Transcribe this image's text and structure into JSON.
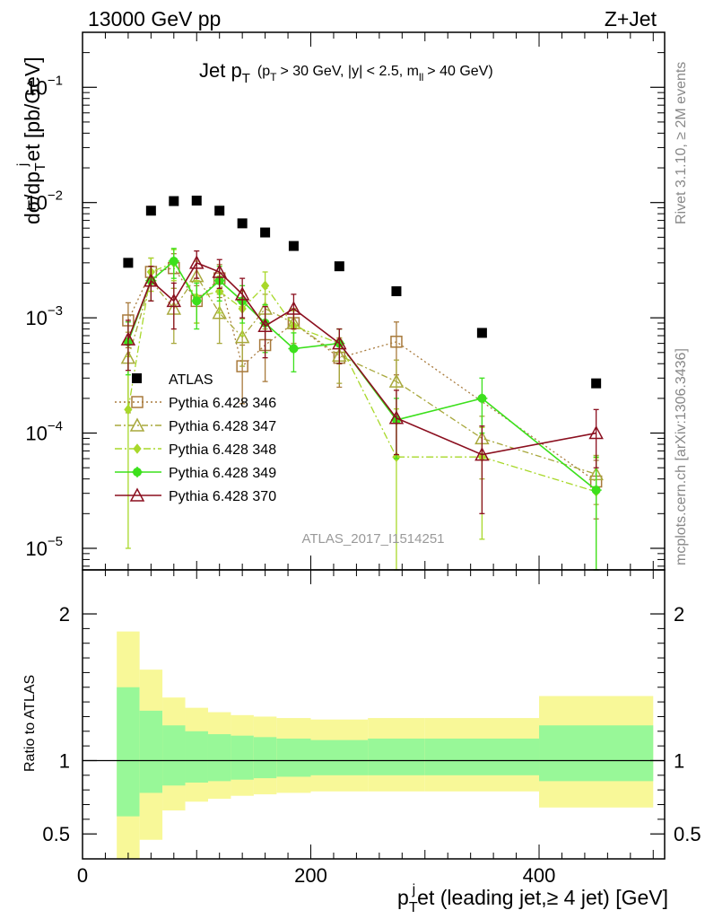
{
  "header": {
    "energy_label": "13000 GeV pp",
    "process_label": "Z+Jet"
  },
  "side": {
    "right_top": "Rivet 3.1.10, ≥ 2M events",
    "right_bottom": "mcplots.cern.ch [arXiv:1306.3436]"
  },
  "colors": {
    "data": "#000000",
    "s346": "#a87a3c",
    "s347": "#a8a83c",
    "s348": "#a8d82a",
    "s349": "#3ce01c",
    "s370": "#8b0f1f",
    "band_inner": "#98f898",
    "band_outer": "#f8f898"
  },
  "chart_data": [
    {
      "type": "scatter",
      "title": "Jet p_T (p_T > 30 GeV, |y| < 2.5, m_ll > 40 GeV)",
      "title_main": "Jet p",
      "title_sub": "T",
      "title_cut_open": "(p",
      "title_cut_sub": "T",
      "title_cut_rest": "> 30 GeV, |y| < 2.5, m",
      "title_cut_sub2": "ll",
      "title_cut_end": "> 40 GeV)",
      "ylabel": "dσ/dp_T^j et [pb/GeV]",
      "ylabel_a": "dσ/dp",
      "ylabel_b": "T",
      "ylabel_c": "j",
      "ylabel_d": "et [pb/GeV]",
      "yscale": "log",
      "ylim": [
        6.5e-06,
        0.3
      ],
      "xlim": [
        0,
        510
      ],
      "watermark": "ATLAS_2017_I1514251",
      "yticks": [
        {
          "v": 1e-05,
          "base": "10",
          "exp": "−5"
        },
        {
          "v": 0.0001,
          "base": "10",
          "exp": "−4"
        },
        {
          "v": 0.001,
          "base": "10",
          "exp": "−3"
        },
        {
          "v": 0.01,
          "base": "10",
          "exp": "−2"
        },
        {
          "v": 0.1,
          "base": "10",
          "exp": "−1"
        }
      ],
      "data": {
        "name": "ATLAS",
        "x": [
          40,
          60,
          80,
          100,
          120,
          140,
          160,
          185,
          225,
          275,
          350,
          450
        ],
        "values": [
          0.003,
          0.0085,
          0.0103,
          0.0104,
          0.0085,
          0.0066,
          0.0055,
          0.0042,
          0.0028,
          0.0017,
          0.00074,
          0.00027
        ]
      },
      "series": [
        {
          "id": "s346",
          "name": "Pythia 6.428 346",
          "marker": "square",
          "dash": "2,3",
          "x": [
            40,
            60,
            80,
            100,
            120,
            140,
            160,
            185,
            225,
            275,
            350,
            450
          ],
          "values": [
            0.00095,
            0.0025,
            0.0027,
            0.0014,
            0.0022,
            0.00038,
            0.00058,
            0.0009,
            0.00045,
            0.00062,
            null,
            3.8e-05
          ],
          "err_lo": [
            0.0004,
            0.0008,
            0.0009,
            0.0005,
            0.0007,
            0.0002,
            0.0003,
            0.0003,
            0.0002,
            0.0003,
            null,
            2e-05
          ],
          "err_hi": [
            0.0004,
            0.0008,
            0.0009,
            0.0005,
            0.0007,
            0.0002,
            0.0003,
            0.0003,
            0.0002,
            0.0003,
            null,
            2e-05
          ]
        },
        {
          "id": "s347",
          "name": "Pythia 6.428 347",
          "marker": "triangle",
          "dash": "7,3,2,3",
          "x": [
            40,
            60,
            80,
            100,
            120,
            140,
            160,
            185,
            225,
            275,
            350,
            450
          ],
          "values": [
            0.00045,
            0.0021,
            0.0012,
            0.0023,
            0.0011,
            0.00068,
            0.0012,
            0.0009,
            0.00047,
            0.00028,
            9e-05,
            4.4e-05
          ],
          "err_lo": [
            0.0003,
            0.0007,
            0.0006,
            0.0008,
            0.0005,
            0.0003,
            0.0004,
            0.0003,
            0.0002,
            0.00015,
            5e-05,
            2e-05
          ],
          "err_hi": [
            0.0003,
            0.0007,
            0.0006,
            0.0008,
            0.0005,
            0.0003,
            0.0004,
            0.0003,
            0.0002,
            0.00015,
            5e-05,
            2e-05
          ]
        },
        {
          "id": "s348",
          "name": "Pythia 6.428 348",
          "marker": "diamond",
          "dash": "8,3,2,3",
          "x": [
            40,
            60,
            80,
            100,
            120,
            140,
            160,
            185,
            225,
            275,
            350,
            450
          ],
          "values": [
            0.00016,
            0.0025,
            0.003,
            0.0015,
            0.0017,
            0.0012,
            0.0019,
            0.00085,
            0.0006,
            6.2e-05,
            6.2e-05,
            3.1e-05
          ],
          "err_lo": [
            0.00015,
            0.0008,
            0.0009,
            0.0006,
            0.0006,
            0.0005,
            0.0006,
            0.0003,
            0.0002,
            6e-05,
            5e-05,
            3e-05
          ],
          "err_hi": [
            0.0003,
            0.0008,
            0.0009,
            0.0006,
            0.0006,
            0.0005,
            0.0006,
            0.0003,
            0.0002,
            0.0001,
            5e-05,
            3e-05
          ]
        },
        {
          "id": "s349",
          "name": "Pythia 6.428 349",
          "marker": "plus-circle",
          "dash": "",
          "x": [
            40,
            60,
            80,
            100,
            120,
            140,
            160,
            185,
            225,
            275,
            350,
            450
          ],
          "values": [
            0.00062,
            0.0021,
            0.0031,
            0.0014,
            0.0021,
            0.0014,
            0.0009,
            0.00054,
            0.0006,
            0.00013,
            0.0002,
            3.2e-05
          ],
          "err_lo": [
            0.0003,
            0.0007,
            0.0009,
            0.0006,
            0.0007,
            0.0005,
            0.0004,
            0.0002,
            0.0002,
            7e-05,
            0.0001,
            3e-05
          ],
          "err_hi": [
            0.0003,
            0.0007,
            0.0009,
            0.0006,
            0.0007,
            0.0005,
            0.0004,
            0.0002,
            0.0002,
            7e-05,
            0.0001,
            3e-05
          ]
        },
        {
          "id": "s370",
          "name": "Pythia 6.428 370",
          "marker": "triangle",
          "dash": "",
          "x": [
            40,
            60,
            80,
            100,
            120,
            140,
            160,
            185,
            225,
            275,
            350,
            450
          ],
          "values": [
            0.00065,
            0.0021,
            0.0014,
            0.003,
            0.0025,
            0.0016,
            0.00085,
            0.0012,
            0.0006,
            0.000135,
            6.5e-05,
            0.0001
          ],
          "err_lo": [
            0.0003,
            0.0007,
            0.0006,
            0.0008,
            0.0007,
            0.0006,
            0.0004,
            0.0004,
            0.0002,
            7e-05,
            4.5e-05,
            5e-05
          ],
          "err_hi": [
            0.0003,
            0.0007,
            0.0006,
            0.0008,
            0.0007,
            0.0006,
            0.0004,
            0.0004,
            0.0002,
            0.0001,
            5e-05,
            6e-05
          ]
        }
      ]
    },
    {
      "type": "area",
      "ylabel": "Ratio to ATLAS",
      "xlabel": "p_T^j et (leading jet,≥ 4 jet) [GeV]",
      "xlabel_a": "p",
      "xlabel_b": "T",
      "xlabel_c": "j",
      "xlabel_d": "et (leading jet,≥ 4 jet) [GeV]",
      "ylim": [
        0.33,
        2.3
      ],
      "xlim": [
        0,
        510
      ],
      "xticks": [
        "0",
        "200",
        "400"
      ],
      "yticks": [
        "0.5",
        "1",
        "2"
      ],
      "bin_edges": [
        30,
        50,
        70,
        90,
        110,
        130,
        150,
        170,
        200,
        250,
        300,
        400,
        500
      ],
      "inner_lo": [
        0.62,
        0.78,
        0.83,
        0.85,
        0.86,
        0.87,
        0.88,
        0.89,
        0.9,
        0.9,
        0.9,
        0.86
      ],
      "inner_hi": [
        1.5,
        1.34,
        1.24,
        1.2,
        1.18,
        1.17,
        1.16,
        1.15,
        1.14,
        1.15,
        1.15,
        1.24
      ],
      "outer_lo": [
        0.33,
        0.46,
        0.66,
        0.72,
        0.74,
        0.76,
        0.77,
        0.78,
        0.79,
        0.79,
        0.79,
        0.68
      ],
      "outer_hi": [
        1.88,
        1.62,
        1.43,
        1.36,
        1.33,
        1.31,
        1.3,
        1.29,
        1.28,
        1.29,
        1.29,
        1.44
      ]
    }
  ]
}
